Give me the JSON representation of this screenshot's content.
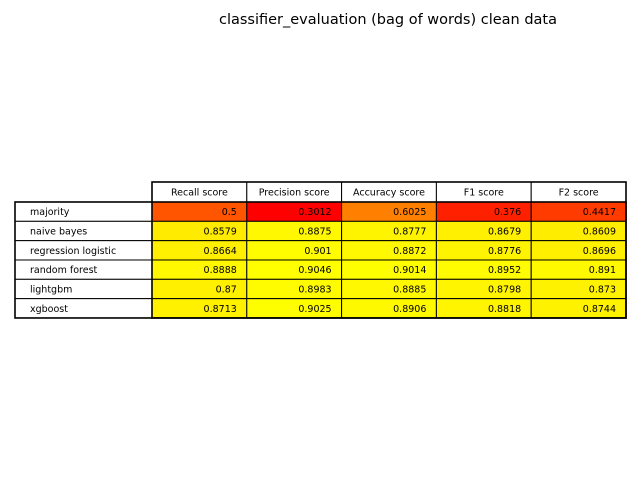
{
  "chart_data": {
    "type": "table",
    "title": "classifier_evaluation (bag of words) clean data",
    "columns": [
      "Recall score",
      "Precision score",
      "Accuracy score",
      "F1 score",
      "F2 score"
    ],
    "rows": [
      {
        "label": "majority",
        "values": [
          "0.5",
          "0.3012",
          "0.6025",
          "0.376",
          "0.4417"
        ]
      },
      {
        "label": "naive bayes",
        "values": [
          "0.8579",
          "0.8875",
          "0.8777",
          "0.8679",
          "0.8609"
        ]
      },
      {
        "label": "regression logistic",
        "values": [
          "0.8664",
          "0.901",
          "0.8872",
          "0.8776",
          "0.8696"
        ]
      },
      {
        "label": "random forest",
        "values": [
          "0.8888",
          "0.9046",
          "0.9014",
          "0.8952",
          "0.891"
        ]
      },
      {
        "label": "lightgbm",
        "values": [
          "0.87",
          "0.8983",
          "0.8885",
          "0.8798",
          "0.873"
        ]
      },
      {
        "label": "xgboost",
        "values": [
          "0.8713",
          "0.9025",
          "0.8906",
          "0.8818",
          "0.8744"
        ]
      }
    ],
    "colormap": "autumn",
    "color_range": [
      0.3012,
      0.9046
    ],
    "grid": true
  }
}
